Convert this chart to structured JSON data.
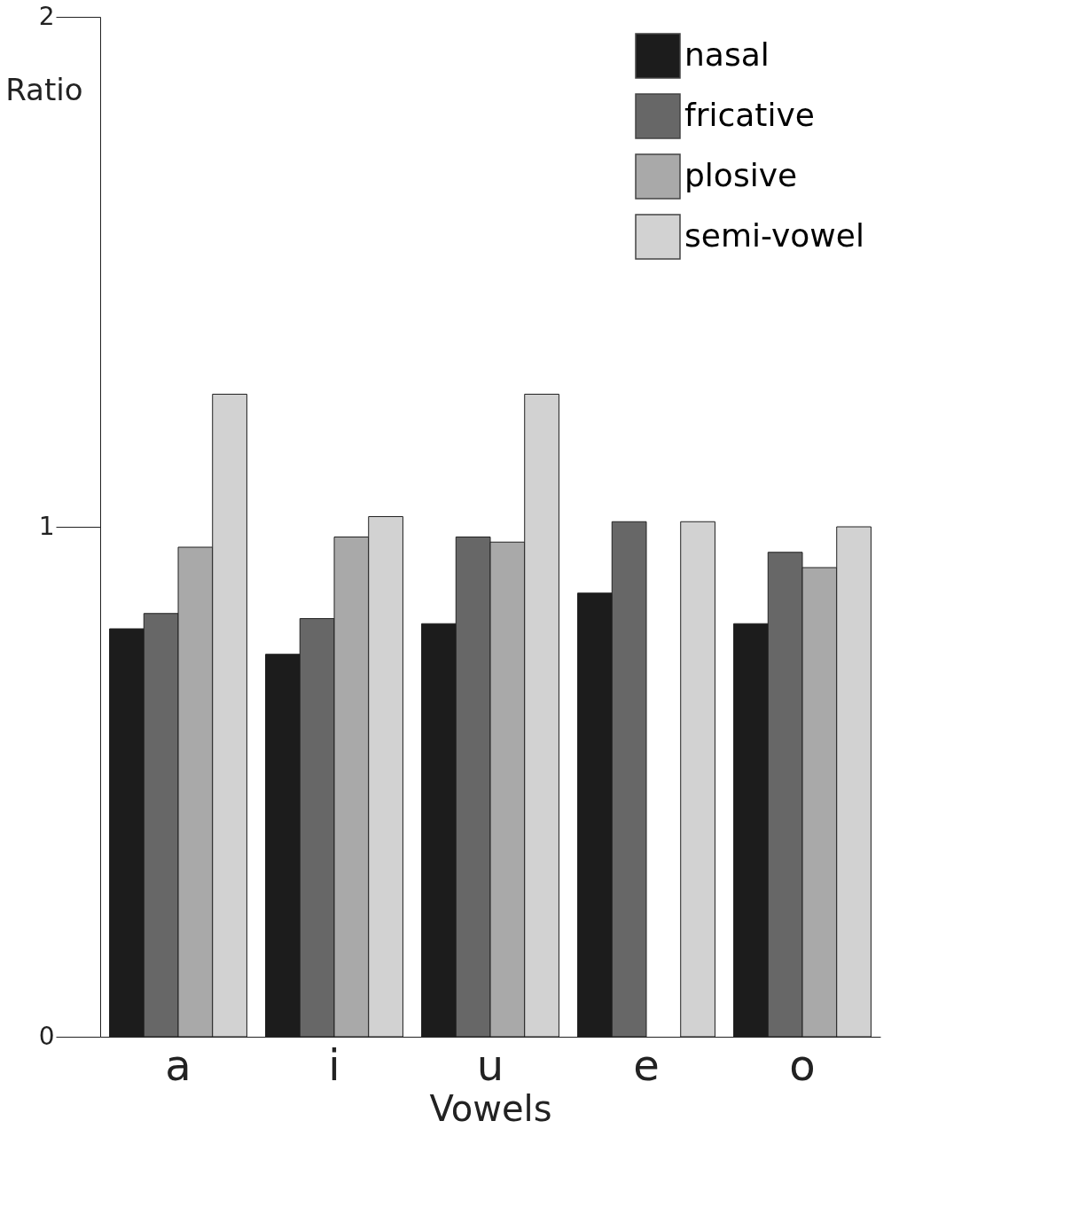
{
  "chart_data": {
    "type": "bar",
    "xlabel": "Vowels",
    "ylabel": "Ratio",
    "categories": [
      "a",
      "i",
      "u",
      "e",
      "o"
    ],
    "series": [
      {
        "name": "nasal",
        "color": "#1c1c1c",
        "values": [
          0.8,
          0.75,
          0.81,
          0.87,
          0.81
        ]
      },
      {
        "name": "fricative",
        "color": "#676767",
        "values": [
          0.83,
          0.82,
          0.98,
          1.01,
          0.95
        ]
      },
      {
        "name": "plosive",
        "color": "#a9a9a9",
        "values": [
          0.96,
          0.98,
          0.97,
          null,
          0.92
        ]
      },
      {
        "name": "semi-vowel",
        "color": "#d2d2d2",
        "values": [
          1.26,
          1.02,
          1.26,
          1.01,
          1.0
        ]
      }
    ],
    "ylim": [
      0,
      2
    ],
    "yticks": [
      0,
      1,
      2
    ],
    "grid": false,
    "legend": "top right"
  }
}
